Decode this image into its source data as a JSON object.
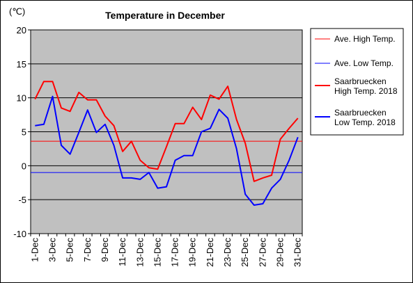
{
  "chart_data": {
    "type": "line",
    "title": "Temperature in December",
    "unit_label": "(℃)",
    "ylim": [
      -10,
      20
    ],
    "y_ticks": [
      -10,
      -5,
      0,
      5,
      10,
      15,
      20
    ],
    "x": [
      "1-Dec",
      "2-Dec",
      "3-Dec",
      "4-Dec",
      "5-Dec",
      "6-Dec",
      "7-Dec",
      "8-Dec",
      "9-Dec",
      "10-Dec",
      "11-Dec",
      "12-Dec",
      "13-Dec",
      "14-Dec",
      "15-Dec",
      "16-Dec",
      "17-Dec",
      "18-Dec",
      "19-Dec",
      "20-Dec",
      "21-Dec",
      "22-Dec",
      "23-Dec",
      "24-Dec",
      "25-Dec",
      "26-Dec",
      "27-Dec",
      "28-Dec",
      "29-Dec",
      "30-Dec",
      "31-Dec"
    ],
    "x_tick_labels": [
      "1-Dec",
      "3-Dec",
      "5-Dec",
      "7-Dec",
      "9-Dec",
      "11-Dec",
      "13-Dec",
      "15-Dec",
      "17-Dec",
      "19-Dec",
      "21-Dec",
      "23-Dec",
      "25-Dec",
      "27-Dec",
      "29-Dec",
      "31-Dec"
    ],
    "grid": true,
    "plot_background": "#c0c0c0",
    "legend_position": "right",
    "series": [
      {
        "name": "Ave. High Temp.",
        "color": "#ff0000",
        "width": 1,
        "constant": 3.6
      },
      {
        "name": "Ave. Low Temp.",
        "color": "#0000ff",
        "width": 1,
        "constant": -1.0
      },
      {
        "name": "Saarbruecken High Temp. 2018",
        "legend_lines": [
          "Saarbruecken",
          "High Temp. 2018"
        ],
        "color": "#ff0000",
        "width": 2,
        "values": [
          9.8,
          12.4,
          12.4,
          8.5,
          8.0,
          10.8,
          9.7,
          9.7,
          7.3,
          5.9,
          2.1,
          3.6,
          0.8,
          -0.3,
          -0.5,
          2.8,
          6.2,
          6.2,
          8.6,
          6.8,
          10.4,
          9.8,
          11.7,
          6.8,
          3.3,
          -2.3,
          -1.8,
          -1.4,
          3.9,
          5.5,
          7.0
        ]
      },
      {
        "name": "Saarbruecken Low Temp. 2018",
        "legend_lines": [
          "Saarbruecken",
          "Low Temp. 2018"
        ],
        "color": "#0000ff",
        "width": 2,
        "values": [
          5.9,
          6.1,
          10.2,
          3.0,
          1.7,
          4.9,
          8.2,
          4.9,
          6.1,
          3.0,
          -1.8,
          -1.8,
          -2.0,
          -1.0,
          -3.3,
          -3.1,
          0.8,
          1.5,
          1.5,
          5.0,
          5.5,
          8.3,
          7.0,
          2.5,
          -4.2,
          -5.8,
          -5.6,
          -3.3,
          -2.0,
          0.8,
          4.2
        ]
      }
    ]
  }
}
